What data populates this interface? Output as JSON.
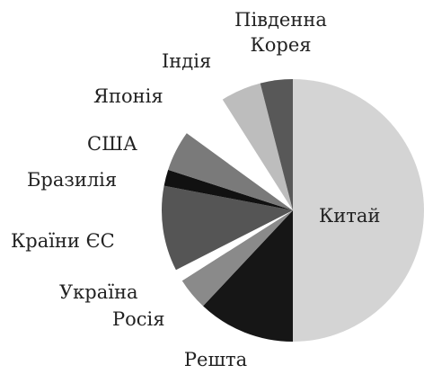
{
  "chart_data": {
    "type": "pie",
    "categories": [
      "Китай",
      "Решта",
      "Росія",
      "Україна",
      "Країни ЄС",
      "Бразилія",
      "США",
      "Японія",
      "Індія",
      "Південна Корея"
    ],
    "values": [
      50,
      12,
      4,
      1.5,
      10.5,
      2,
      5,
      6,
      5,
      4
    ],
    "colors": [
      "#d4d4d4",
      "#161616",
      "#8a8a8a",
      "#ffffff",
      "#555555",
      "#111111",
      "#7a7a7a",
      "#ffffff",
      "#bdbdbd",
      "#585858"
    ]
  }
}
